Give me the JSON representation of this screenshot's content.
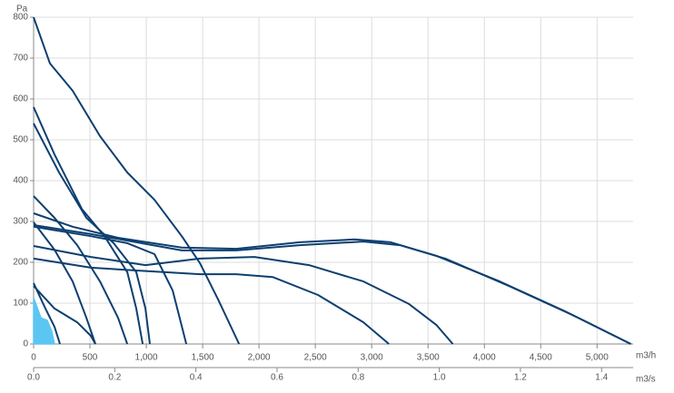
{
  "chart_data": {
    "type": "line",
    "y_unit": "Pa",
    "x_unit": "m3/h",
    "x2_unit": "m3/s",
    "color": "#0d3f70",
    "area_color": "#5cc6f2",
    "grid": true,
    "xlim": [
      0,
      5320
    ],
    "ylim": [
      0,
      800
    ],
    "x2lim": [
      0,
      1.4778
    ],
    "xticks": [
      0,
      500,
      {
        "value": 1000,
        "label": "1,000"
      },
      {
        "value": 1500,
        "label": "1,500"
      },
      {
        "value": 2000,
        "label": "2,000"
      },
      {
        "value": 2500,
        "label": "2,500"
      },
      {
        "value": 3000,
        "label": "3,000"
      },
      {
        "value": 3500,
        "label": "3,500"
      },
      {
        "value": 4000,
        "label": "4,000"
      },
      {
        "value": 4500,
        "label": "4,500"
      },
      {
        "value": 5000,
        "label": "5,000"
      }
    ],
    "yticks": [
      0,
      100,
      200,
      300,
      400,
      500,
      600,
      700,
      800
    ],
    "x2ticks": [
      {
        "value": 0,
        "label": "0.0"
      },
      0.2,
      0.4,
      0.6,
      0.8,
      {
        "value": 1,
        "label": "1.0"
      },
      1.2,
      1.4
    ],
    "series": [
      {
        "x": [
          0,
          145,
          347,
          589,
          831,
          1073,
          1315,
          1476,
          1637,
          1823
        ],
        "values": [
          800,
          687,
          620,
          509,
          420,
          353,
          264,
          198,
          109,
          0
        ]
      },
      {
        "x": [
          0,
          347,
          750,
          1315,
          1798,
          2363,
          2847,
          3169,
          3573,
          4137,
          4702,
          5300
        ],
        "values": [
          320,
          287,
          260,
          236,
          233,
          249,
          256,
          249,
          216,
          153,
          82,
          0
        ]
      },
      {
        "x": [
          0,
          508,
          1315,
          1798,
          2363,
          2927,
          3250,
          3653,
          4218,
          4782,
          5300
        ],
        "values": [
          291,
          269,
          229,
          229,
          242,
          251,
          242,
          209,
          142,
          71,
          0
        ]
      },
      {
        "x": [
          0,
          508,
          992,
          1476,
          1960,
          2444,
          2927,
          3331,
          3573,
          3720
        ],
        "values": [
          240,
          213,
          193,
          209,
          213,
          193,
          153,
          98,
          47,
          0
        ]
      },
      {
        "x": [
          0,
          508,
          911,
          1476,
          1798,
          2121,
          2524,
          2927,
          3153
        ],
        "values": [
          209,
          187,
          180,
          171,
          171,
          164,
          120,
          53,
          0
        ]
      },
      {
        "x": [
          0,
          185,
          427,
          629,
          831,
          911,
          968
        ],
        "values": [
          580,
          464,
          331,
          264,
          176,
          87,
          0
        ]
      },
      {
        "x": [
          0,
          226,
          468,
          710,
          911,
          992,
          1032
        ],
        "values": [
          540,
          420,
          309,
          247,
          176,
          87,
          0
        ]
      },
      {
        "x": [
          0,
          185,
          387,
          589,
          750,
          831
        ],
        "values": [
          362,
          309,
          242,
          153,
          64,
          0
        ]
      },
      {
        "x": [
          0,
          508,
          831,
          1073,
          1234,
          1355
        ],
        "values": [
          287,
          264,
          247,
          220,
          131,
          0
        ]
      },
      {
        "x": [
          0,
          185,
          347,
          468,
          548
        ],
        "values": [
          298,
          231,
          153,
          64,
          0
        ]
      },
      {
        "x": [
          0,
          105,
          185,
          234
        ],
        "values": [
          149,
          87,
          42,
          0
        ]
      },
      {
        "x": [
          0,
          185,
          387,
          508,
          548
        ],
        "values": [
          142,
          87,
          53,
          20,
          0
        ]
      },
      {
        "x": [
          0,
          65,
          121,
          161,
          185
        ],
        "values": [
          113,
          64,
          58,
          31,
          0
        ],
        "fill": true
      }
    ]
  }
}
